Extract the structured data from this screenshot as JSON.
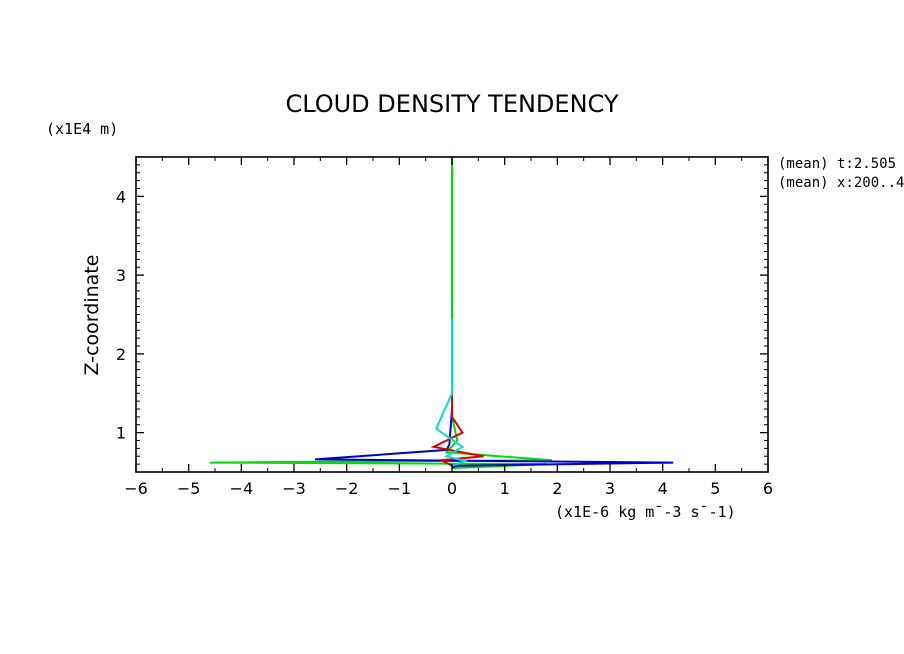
{
  "chart_data": {
    "type": "line",
    "title": "CLOUD DENSITY TENDENCY",
    "xlabel": "(x1E-6 kg m¯-3 s¯-1)",
    "ylabel": "Z-coordinate",
    "y_unit_label": "(x1E4 m)",
    "xlim": [
      -6,
      6
    ],
    "ylim": [
      0.5,
      4.5
    ],
    "x_ticks": [
      -6,
      -5,
      -4,
      -3,
      -2,
      -1,
      0,
      1,
      2,
      3,
      4,
      5,
      6
    ],
    "y_ticks": [
      1,
      2,
      3,
      4
    ],
    "annotations": [
      "(mean) t:2.505",
      "(mean) x:200..4"
    ],
    "grid": false,
    "series": [
      {
        "color": "#00dd00",
        "points": [
          [
            0,
            4.5
          ],
          [
            0,
            1.2
          ],
          [
            0.1,
            0.9
          ],
          [
            -0.1,
            0.75
          ],
          [
            1.9,
            0.65
          ],
          [
            -4.6,
            0.62
          ],
          [
            1.8,
            0.6
          ],
          [
            0,
            0.55
          ]
        ]
      },
      {
        "color": "#0000cc",
        "points": [
          [
            0,
            1.3
          ],
          [
            -0.05,
            0.85
          ],
          [
            -0.1,
            0.78
          ],
          [
            -2.6,
            0.66
          ],
          [
            4.2,
            0.62
          ],
          [
            0.1,
            0.58
          ],
          [
            0,
            0.56
          ]
        ]
      },
      {
        "color": "#dd0000",
        "points": [
          [
            0,
            1.9
          ],
          [
            0,
            1.2
          ],
          [
            0.2,
            1.0
          ],
          [
            -0.35,
            0.82
          ],
          [
            0.6,
            0.7
          ],
          [
            -0.2,
            0.65
          ],
          [
            0,
            0.58
          ]
        ]
      },
      {
        "color": "#00dddd",
        "points": [
          [
            0,
            2.45
          ],
          [
            0,
            1.5
          ],
          [
            -0.3,
            1.05
          ],
          [
            0.2,
            0.82
          ],
          [
            -0.1,
            0.7
          ],
          [
            0.25,
            0.64
          ],
          [
            0,
            0.58
          ]
        ]
      }
    ]
  }
}
